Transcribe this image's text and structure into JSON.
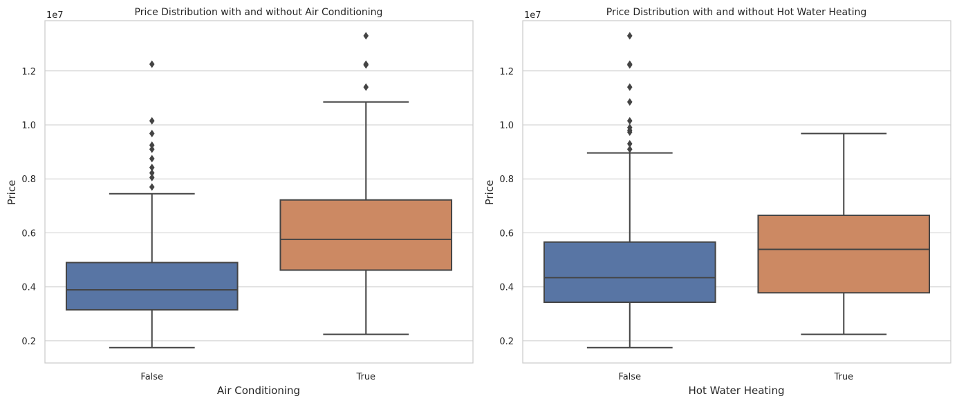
{
  "chart_data": [
    {
      "type": "box",
      "title": "Price Distribution with and without Air Conditioning",
      "xlabel": "Air Conditioning",
      "ylabel": "Price",
      "axis_offset_label": "1e7",
      "yticks": [
        0.2,
        0.4,
        0.6,
        0.8,
        1.0,
        1.2
      ],
      "ytick_labels": [
        "0.2",
        "0.4",
        "0.6",
        "0.8",
        "1.0",
        "1.2"
      ],
      "ylim": [
        0.118,
        1.386
      ],
      "grid": "horizontal",
      "categories": [
        "False",
        "True"
      ],
      "boxes": [
        {
          "category": "False",
          "color": "#5875a4",
          "whisker_low": 0.175,
          "q1": 0.315,
          "median": 0.389,
          "q3": 0.49,
          "whisker_high": 0.745,
          "outliers": [
            0.77,
            0.805,
            0.822,
            0.842,
            0.875,
            0.91,
            0.925,
            0.968,
            1.015,
            1.225
          ]
        },
        {
          "category": "True",
          "color": "#cc8963",
          "whisker_low": 0.224,
          "q1": 0.462,
          "median": 0.576,
          "q3": 0.722,
          "whisker_high": 1.085,
          "outliers": [
            1.14,
            1.222,
            1.225,
            1.33
          ]
        }
      ]
    },
    {
      "type": "box",
      "title": "Price Distribution with and without Hot Water Heating",
      "xlabel": "Hot Water Heating",
      "ylabel": "Price",
      "axis_offset_label": "1e7",
      "yticks": [
        0.2,
        0.4,
        0.6,
        0.8,
        1.0,
        1.2
      ],
      "ytick_labels": [
        "0.2",
        "0.4",
        "0.6",
        "0.8",
        "1.0",
        "1.2"
      ],
      "ylim": [
        0.118,
        1.386
      ],
      "grid": "horizontal",
      "categories": [
        "False",
        "True"
      ],
      "boxes": [
        {
          "category": "False",
          "color": "#5875a4",
          "whisker_low": 0.175,
          "q1": 0.343,
          "median": 0.434,
          "q3": 0.566,
          "whisker_high": 0.896,
          "outliers": [
            0.91,
            0.93,
            0.973,
            0.98,
            0.99,
            1.015,
            1.085,
            1.14,
            1.222,
            1.225,
            1.33
          ]
        },
        {
          "category": "True",
          "color": "#cc8963",
          "whisker_low": 0.224,
          "q1": 0.378,
          "median": 0.539,
          "q3": 0.665,
          "whisker_high": 0.968,
          "outliers": []
        }
      ]
    }
  ]
}
